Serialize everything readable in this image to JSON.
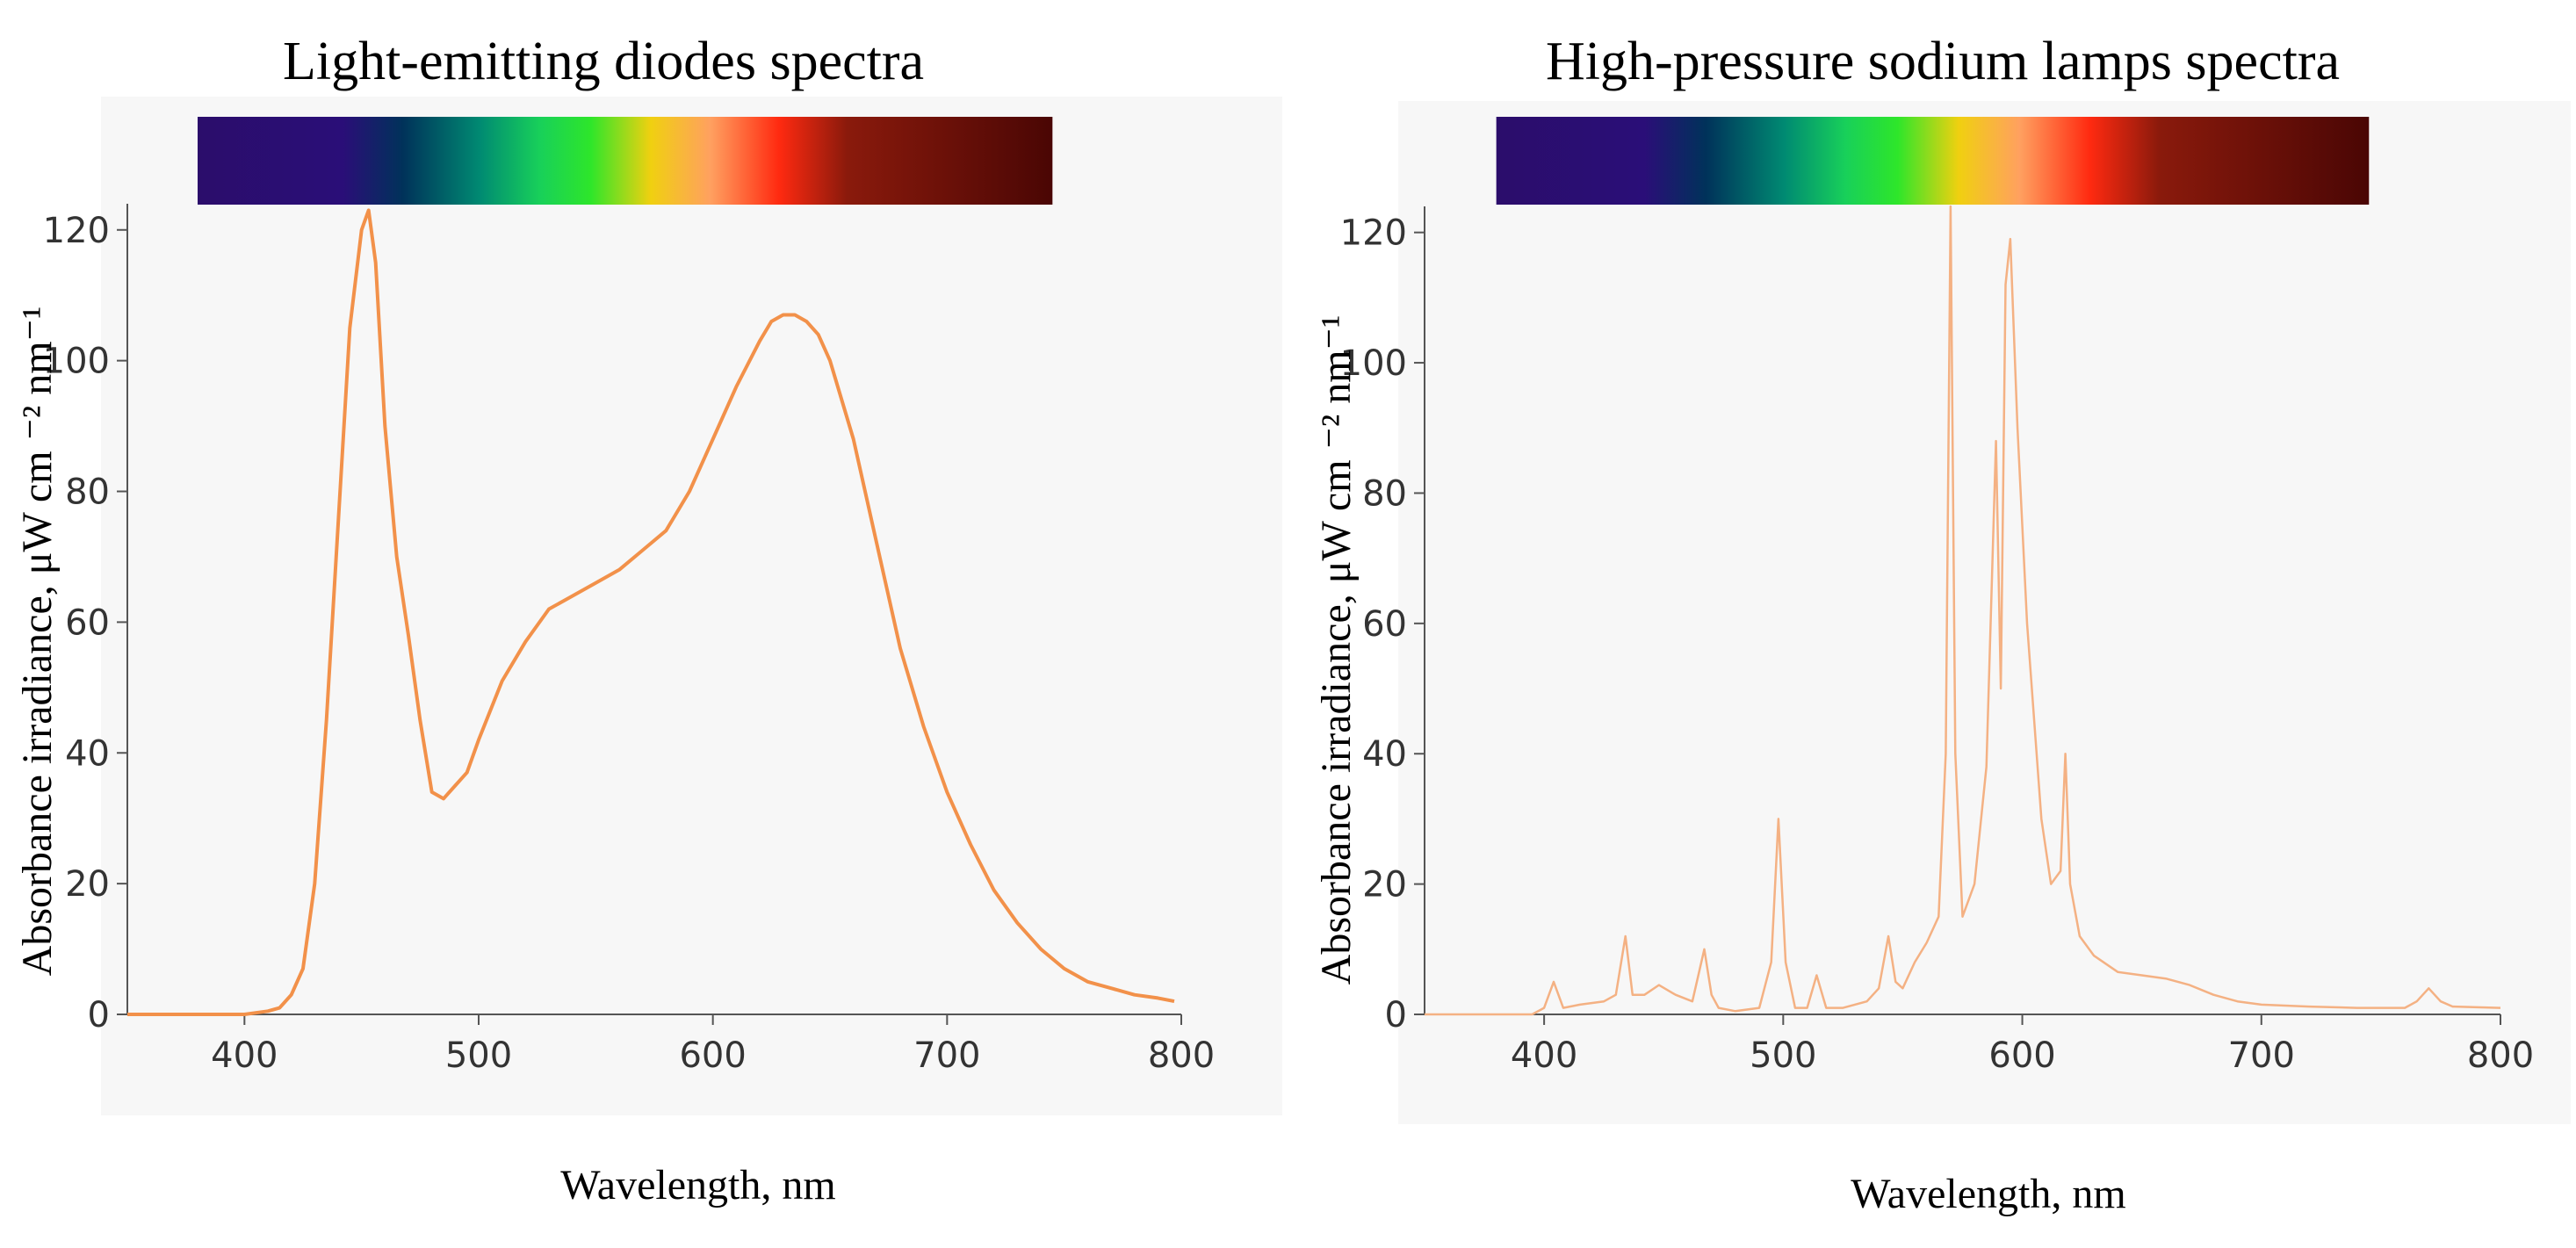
{
  "chart_data": [
    {
      "type": "line",
      "title": "Light-emitting diodes spectra",
      "xlabel": "Wavelength, nm",
      "ylabel": "Absorbance irradiance, μW cm ⁻² nm⁻¹",
      "xlim": [
        350,
        800
      ],
      "ylim": [
        0,
        124
      ],
      "x_ticks": [
        400,
        500,
        600,
        700,
        800
      ],
      "y_ticks": [
        0,
        20,
        40,
        60,
        80,
        100,
        120
      ],
      "color_bar_range": [
        380,
        745
      ],
      "line_color": "#f2914a",
      "series": [
        {
          "x": [
            350,
            380,
            400,
            410,
            415,
            420,
            425,
            430,
            435,
            440,
            445,
            450,
            453,
            456,
            460,
            465,
            470,
            475,
            480,
            485,
            490,
            495,
            500,
            510,
            520,
            530,
            540,
            550,
            560,
            570,
            580,
            590,
            600,
            610,
            620,
            625,
            630,
            635,
            640,
            645,
            650,
            660,
            670,
            680,
            690,
            700,
            710,
            720,
            730,
            740,
            750,
            760,
            770,
            780,
            790,
            797
          ],
          "y": [
            0,
            0,
            0,
            0.5,
            1,
            3,
            7,
            20,
            45,
            75,
            105,
            120,
            123,
            115,
            90,
            70,
            58,
            45,
            34,
            33,
            35,
            37,
            42,
            51,
            57,
            62,
            64,
            66,
            68,
            71,
            74,
            80,
            88,
            96,
            103,
            106,
            107,
            107,
            106,
            104,
            100,
            88,
            72,
            56,
            44,
            34,
            26,
            19,
            14,
            10,
            7,
            5,
            4,
            3,
            2.5,
            2
          ]
        }
      ]
    },
    {
      "type": "line",
      "title": "High-pressure sodium lamps spectra",
      "xlabel": "Wavelength, nm",
      "ylabel": "Absorbance irradiance, μW cm ⁻² nm⁻¹",
      "xlim": [
        350,
        800
      ],
      "ylim": [
        0,
        124
      ],
      "x_ticks": [
        400,
        500,
        600,
        700,
        800
      ],
      "y_ticks": [
        0,
        20,
        40,
        60,
        80,
        100,
        120
      ],
      "color_bar_range": [
        380,
        745
      ],
      "line_color": "#f4b183",
      "series": [
        {
          "x": [
            350,
            395,
            400,
            404,
            408,
            415,
            425,
            430,
            434,
            437,
            442,
            448,
            455,
            462,
            467,
            470,
            473,
            480,
            490,
            495,
            498,
            501,
            505,
            510,
            514,
            518,
            525,
            535,
            540,
            544,
            547,
            550,
            555,
            560,
            565,
            568,
            570,
            572,
            575,
            580,
            585,
            589,
            591,
            593,
            595,
            598,
            602,
            608,
            612,
            616,
            618,
            620,
            624,
            630,
            640,
            650,
            660,
            670,
            680,
            690,
            700,
            720,
            740,
            760,
            765,
            770,
            775,
            780,
            800
          ],
          "y": [
            0,
            0,
            1,
            5,
            1,
            1.5,
            2,
            3,
            12,
            3,
            3,
            4.5,
            3,
            2,
            10,
            3,
            1,
            0.5,
            1,
            8,
            30,
            8,
            1,
            1,
            6,
            1,
            1,
            2,
            4,
            12,
            5,
            4,
            8,
            11,
            15,
            40,
            124,
            40,
            15,
            20,
            38,
            88,
            50,
            112,
            119,
            90,
            60,
            30,
            20,
            22,
            40,
            20,
            12,
            9,
            6.5,
            6,
            5.5,
            4.5,
            3,
            2,
            1.5,
            1.2,
            1,
            1,
            2,
            4,
            2,
            1.2,
            1
          ]
        }
      ]
    }
  ]
}
